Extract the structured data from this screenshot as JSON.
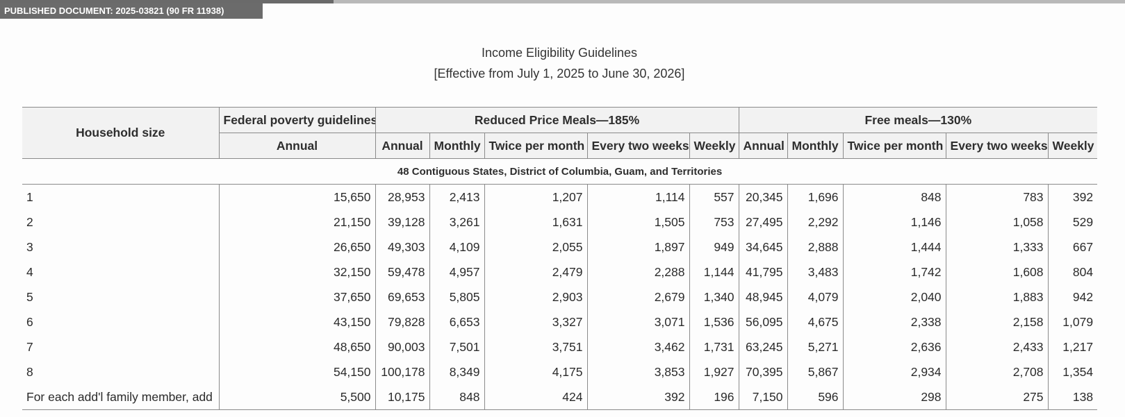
{
  "document_badge": "PUBLISHED DOCUMENT: 2025-03821 (90 FR 11938)",
  "title": "Income Eligibility Guidelines",
  "subtitle": "[Effective from July 1, 2025 to June 30, 2026]",
  "table": {
    "header": {
      "household_size": "Household size",
      "federal_group": "Federal poverty guidelines",
      "reduced_group": "Reduced Price Meals—185%",
      "free_group": "Free meals—130%",
      "federal_sub": [
        "Annual"
      ],
      "reduced_sub": [
        "Annual",
        "Monthly",
        "Twice per month",
        "Every two weeks",
        "Weekly"
      ],
      "free_sub": [
        "Annual",
        "Monthly",
        "Twice per month",
        "Every two weeks",
        "Weekly"
      ]
    },
    "region_label": "48 Contiguous States, District of Columbia, Guam, and Territories",
    "rows": [
      [
        "1",
        "15,650",
        "28,953",
        "2,413",
        "1,207",
        "1,114",
        "557",
        "20,345",
        "1,696",
        "848",
        "783",
        "392"
      ],
      [
        "2",
        "21,150",
        "39,128",
        "3,261",
        "1,631",
        "1,505",
        "753",
        "27,495",
        "2,292",
        "1,146",
        "1,058",
        "529"
      ],
      [
        "3",
        "26,650",
        "49,303",
        "4,109",
        "2,055",
        "1,897",
        "949",
        "34,645",
        "2,888",
        "1,444",
        "1,333",
        "667"
      ],
      [
        "4",
        "32,150",
        "59,478",
        "4,957",
        "2,479",
        "2,288",
        "1,144",
        "41,795",
        "3,483",
        "1,742",
        "1,608",
        "804"
      ],
      [
        "5",
        "37,650",
        "69,653",
        "5,805",
        "2,903",
        "2,679",
        "1,340",
        "48,945",
        "4,079",
        "2,040",
        "1,883",
        "942"
      ],
      [
        "6",
        "43,150",
        "79,828",
        "6,653",
        "3,327",
        "3,071",
        "1,536",
        "56,095",
        "4,675",
        "2,338",
        "2,158",
        "1,079"
      ],
      [
        "7",
        "48,650",
        "90,003",
        "7,501",
        "3,751",
        "3,462",
        "1,731",
        "63,245",
        "5,271",
        "2,636",
        "2,433",
        "1,217"
      ],
      [
        "8",
        "54,150",
        "100,178",
        "8,349",
        "4,175",
        "3,853",
        "1,927",
        "70,395",
        "5,867",
        "2,934",
        "2,708",
        "1,354"
      ],
      [
        "For each add'l family member, add",
        "5,500",
        "10,175",
        "848",
        "424",
        "392",
        "196",
        "7,150",
        "596",
        "298",
        "275",
        "138"
      ]
    ]
  }
}
